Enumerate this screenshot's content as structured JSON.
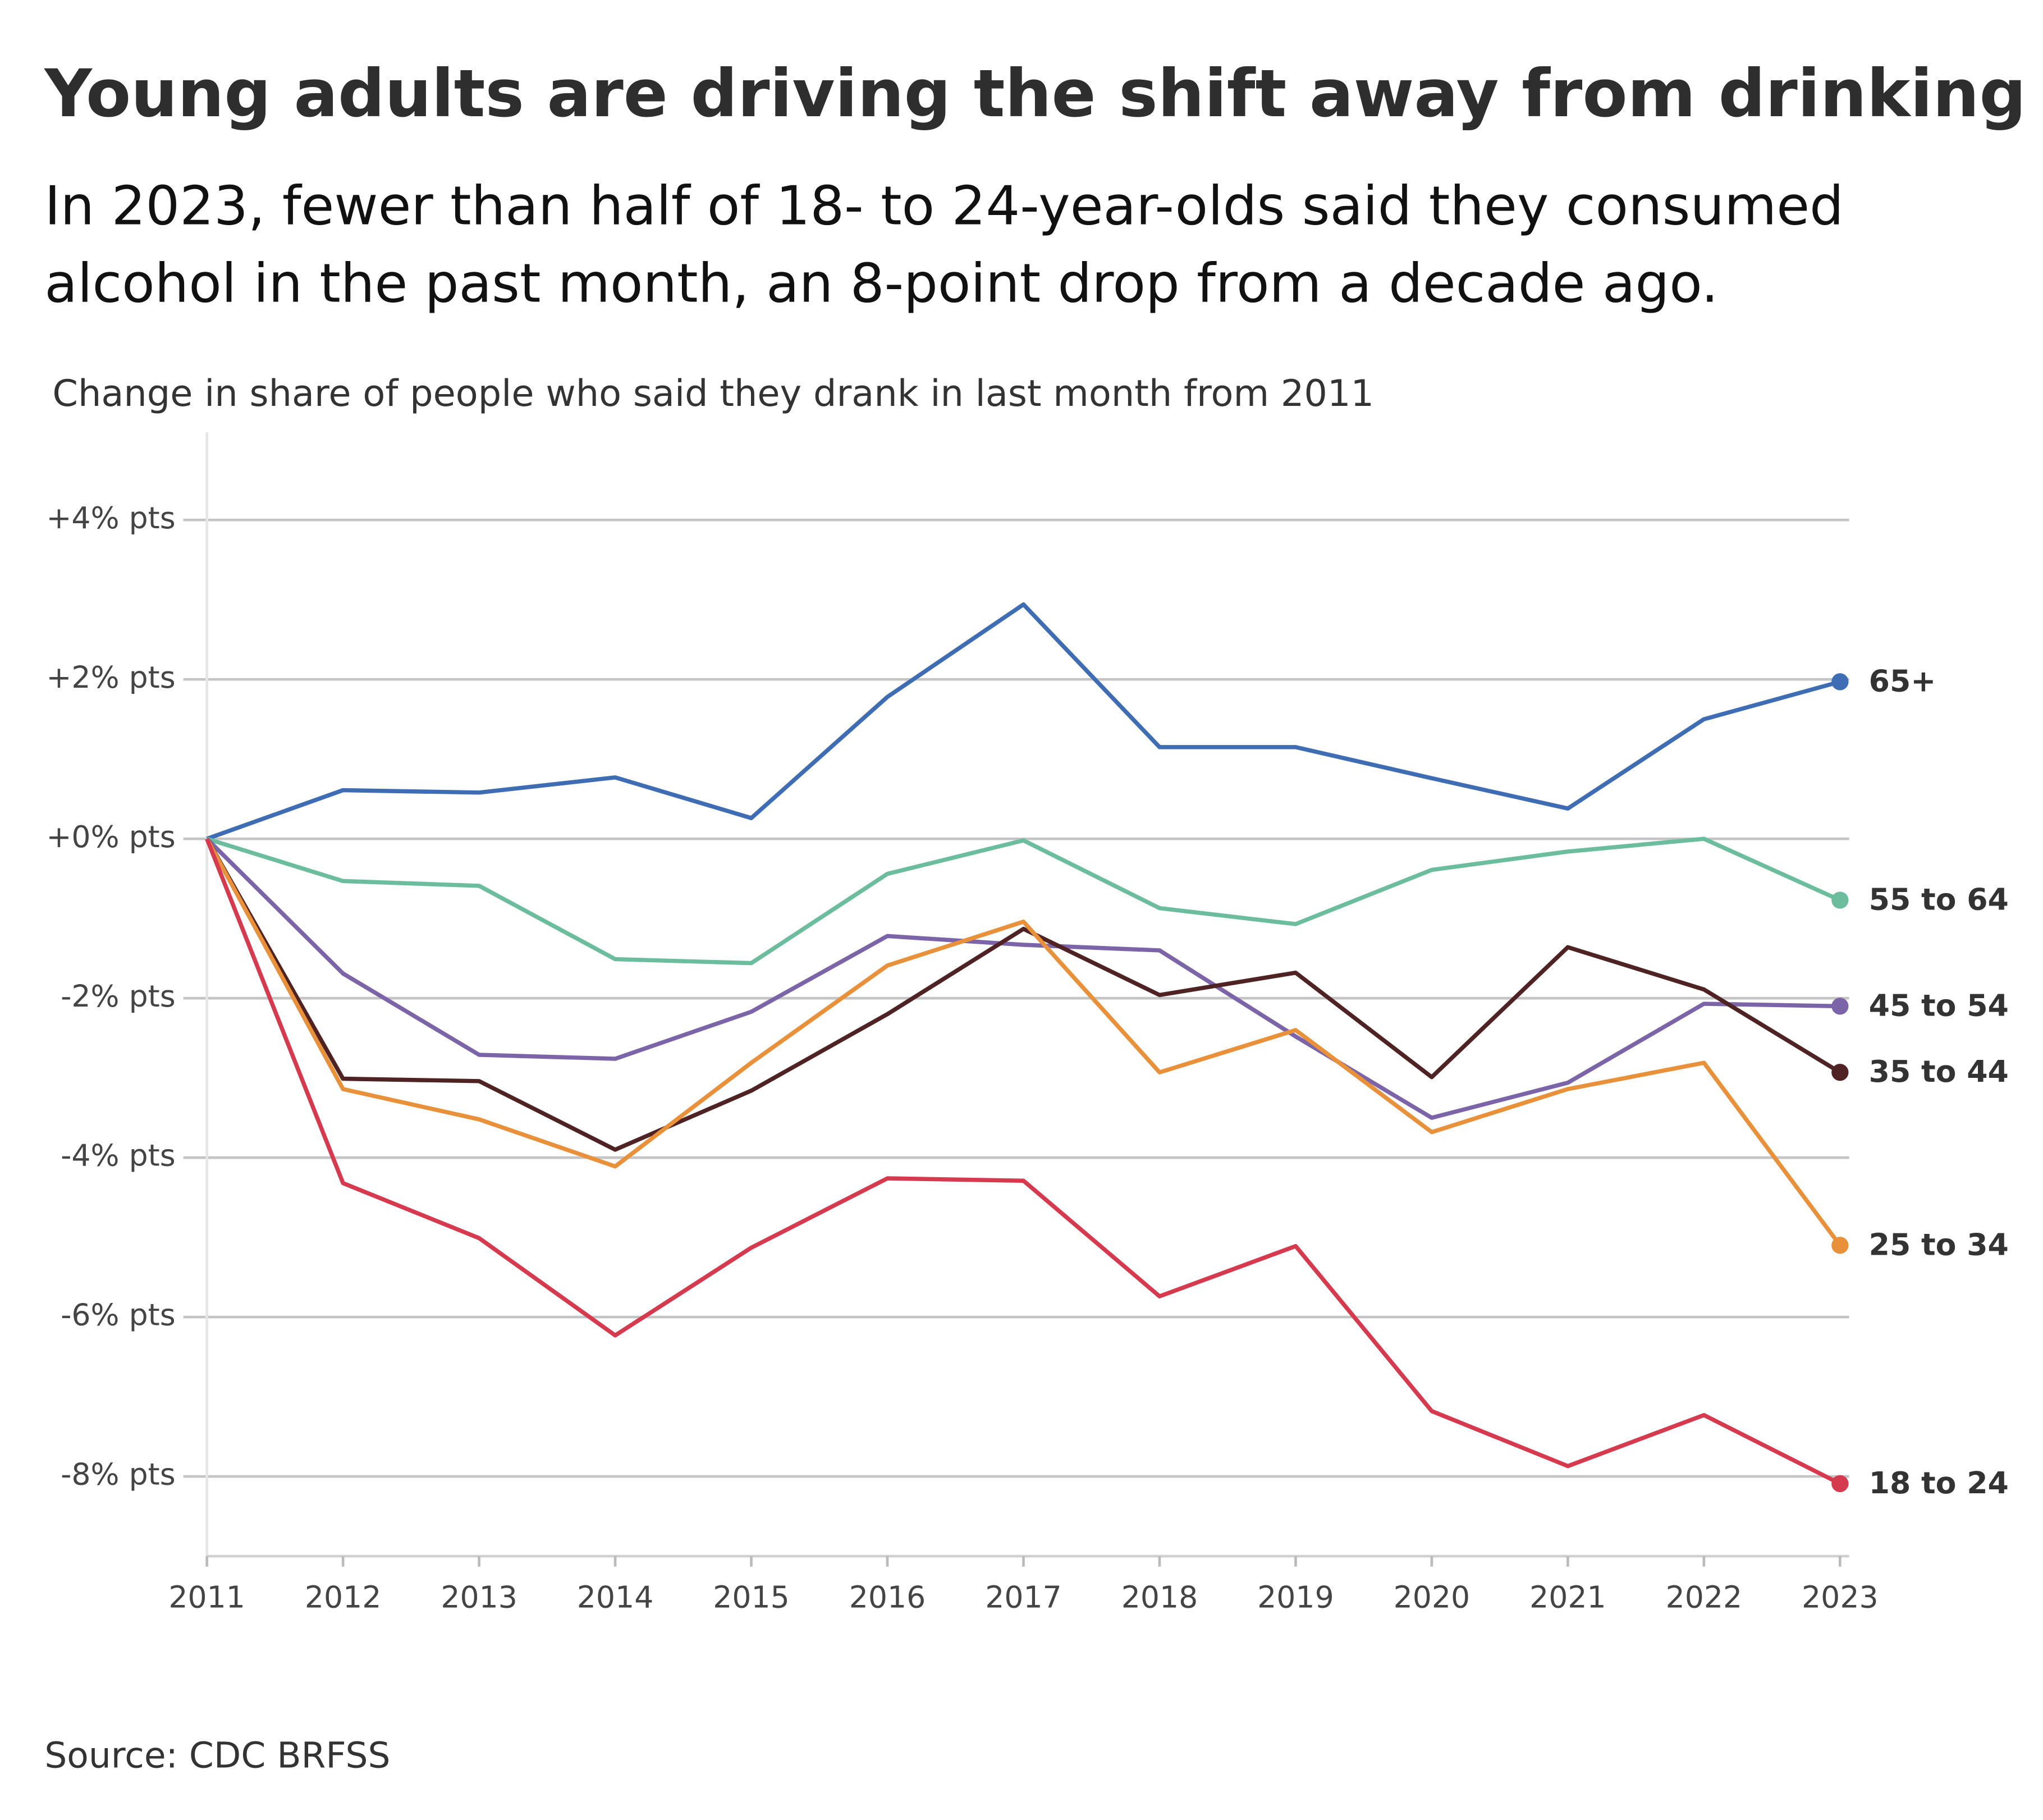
{
  "chart_data": {
    "type": "line",
    "title": "Young adults are driving the shift away from drinking",
    "subtitle": [
      "In 2023, fewer than half of 18- to 24-year-olds said they consumed",
      "alcohol in the past month,  an 8-point drop from a decade ago."
    ],
    "y_label": "Change in share of people who said they drank in last month from 2011",
    "source": "Source: CDC BRFSS",
    "x": [
      2011,
      2012,
      2013,
      2014,
      2015,
      2016,
      2017,
      2018,
      2019,
      2020,
      2021,
      2022,
      2023
    ],
    "xlim": [
      2011,
      2023
    ],
    "xticks": [
      2011,
      2012,
      2013,
      2014,
      2015,
      2016,
      2017,
      2018,
      2019,
      2020,
      2021,
      2022,
      2023
    ],
    "ylim": [
      -9,
      5.1
    ],
    "yticks": [
      {
        "value": 4,
        "label": "+4% pts"
      },
      {
        "value": 2,
        "label": "+2% pts"
      },
      {
        "value": 0,
        "label": "+0% pts"
      },
      {
        "value": -2,
        "label": "-2% pts"
      },
      {
        "value": -4,
        "label": "-4% pts"
      },
      {
        "value": -6,
        "label": "-6% pts"
      },
      {
        "value": -8,
        "label": "-8% pts"
      }
    ],
    "grid": true,
    "series": [
      {
        "name": "65+",
        "color": "#3f6db3",
        "values": [
          0,
          0.61,
          0.58,
          0.77,
          0.26,
          1.78,
          2.94,
          1.15,
          1.15,
          0.76,
          0.38,
          1.5,
          1.97
        ]
      },
      {
        "name": "55 to 64",
        "color": "#6bbd9d",
        "values": [
          0,
          -0.53,
          -0.59,
          -1.51,
          -1.56,
          -0.44,
          -0.02,
          -0.87,
          -1.07,
          -0.39,
          -0.16,
          0,
          -0.77
        ]
      },
      {
        "name": "45 to 54",
        "color": "#7b64a8",
        "values": [
          0,
          -1.69,
          -2.71,
          -2.76,
          -2.17,
          -1.22,
          -1.33,
          -1.4,
          -2.48,
          -3.5,
          -3.06,
          -2.07,
          -2.1
        ]
      },
      {
        "name": "35 to 44",
        "color": "#4f2323",
        "values": [
          0,
          -3.01,
          -3.04,
          -3.9,
          -3.16,
          -2.2,
          -1.13,
          -1.96,
          -1.68,
          -2.99,
          -1.36,
          -1.89,
          -2.93
        ]
      },
      {
        "name": "25 to 34",
        "color": "#e8913a",
        "values": [
          0,
          -3.14,
          -3.52,
          -4.11,
          -2.81,
          -1.59,
          -1.04,
          -2.93,
          -2.4,
          -3.68,
          -3.14,
          -2.81,
          -5.1
        ]
      },
      {
        "name": "18 to 24",
        "color": "#d63a4f",
        "values": [
          0,
          -4.32,
          -5.01,
          -6.23,
          -5.13,
          -4.26,
          -4.29,
          -5.74,
          -5.11,
          -7.18,
          -7.87,
          -7.23,
          -8.09
        ]
      }
    ]
  }
}
